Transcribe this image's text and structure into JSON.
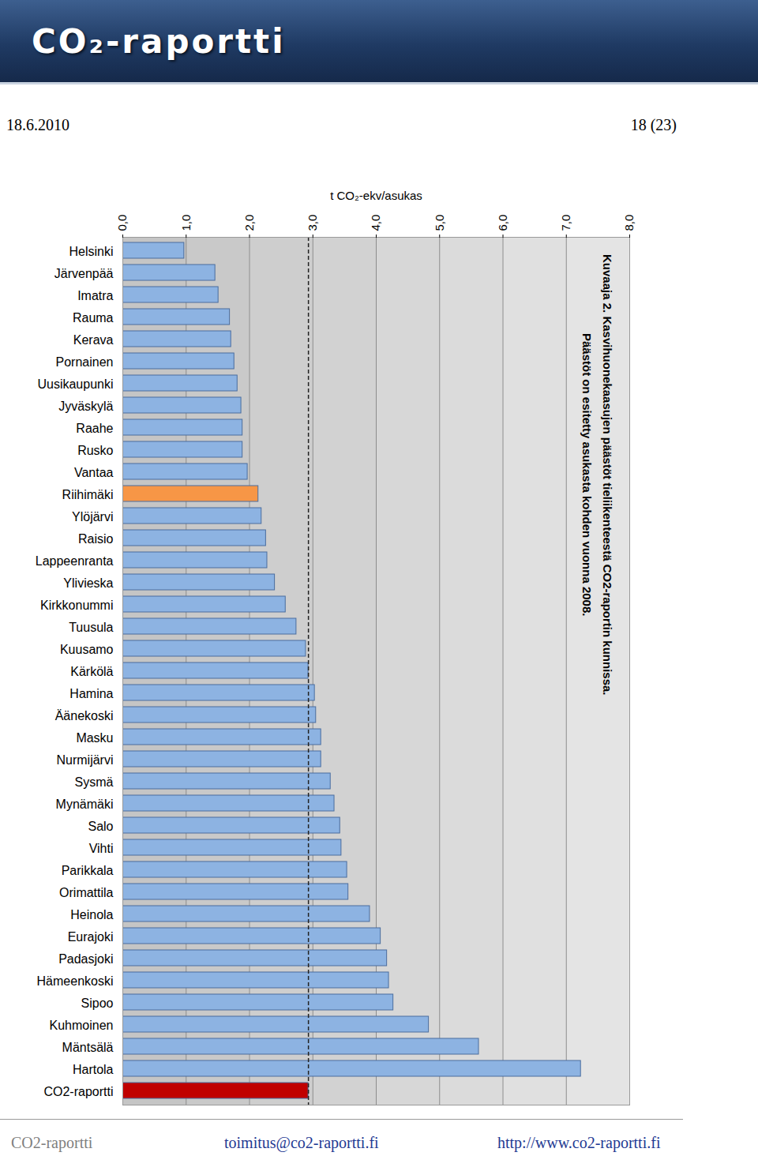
{
  "page": {
    "banner": "CO₂-raportti",
    "date": "18.6.2010",
    "page_number": "18 (23)",
    "footer": [
      "CO2-raportti",
      "toimitus@co2-raportti.fi",
      "http://www.co2-raportti.fi"
    ]
  },
  "chart_data": {
    "type": "bar",
    "orientation": "horizontal",
    "caption": [
      "Kuvaaja 2. Kasvihuonekaasujen päästöt tieliikenteestä CO2-raportin kunnissa.",
      "Päästöt on esitetty asukasta kohden vuonna 2008."
    ],
    "x_label": "t CO₂-ekv/asukas",
    "categories": [
      "Helsinki",
      "Järvenpää",
      "Imatra",
      "Rauma",
      "Kerava",
      "Pornainen",
      "Uusikaupunki",
      "Jyväskylä",
      "Raahe",
      "Rusko",
      "Vantaa",
      "Riihimäki",
      "Ylöjärvi",
      "Raisio",
      "Lappeenranta",
      "Ylivieska",
      "Kirkkonummi",
      "Tuusula",
      "Kuusamo",
      "Kärkölä",
      "Hamina",
      "Äänekoski",
      "Masku",
      "Nurmijärvi",
      "Sysmä",
      "Mynämäki",
      "Salo",
      "Vihti",
      "Parikkala",
      "Orimattila",
      "Heinola",
      "Eurajoki",
      "Padasjoki",
      "Hämeenkoski",
      "Sipoo",
      "Kuhmoinen",
      "Mäntsälä",
      "Hartola",
      "CO2-raportti"
    ],
    "values": [
      0.97,
      1.46,
      1.51,
      1.69,
      1.71,
      1.76,
      1.81,
      1.87,
      1.89,
      1.89,
      1.97,
      2.14,
      2.19,
      2.26,
      2.28,
      2.4,
      2.57,
      2.74,
      2.89,
      2.93,
      3.03,
      3.05,
      3.13,
      3.13,
      3.28,
      3.34,
      3.43,
      3.45,
      3.54,
      3.56,
      3.9,
      4.07,
      4.17,
      4.2,
      4.27,
      4.83,
      5.62,
      7.23,
      2.93
    ],
    "colors": [
      "#8db3e2",
      "#8db3e2",
      "#8db3e2",
      "#8db3e2",
      "#8db3e2",
      "#8db3e2",
      "#8db3e2",
      "#8db3e2",
      "#8db3e2",
      "#8db3e2",
      "#8db3e2",
      "#f79646",
      "#8db3e2",
      "#8db3e2",
      "#8db3e2",
      "#8db3e2",
      "#8db3e2",
      "#8db3e2",
      "#8db3e2",
      "#8db3e2",
      "#8db3e2",
      "#8db3e2",
      "#8db3e2",
      "#8db3e2",
      "#8db3e2",
      "#8db3e2",
      "#8db3e2",
      "#8db3e2",
      "#8db3e2",
      "#8db3e2",
      "#8db3e2",
      "#8db3e2",
      "#8db3e2",
      "#8db3e2",
      "#8db3e2",
      "#8db3e2",
      "#8db3e2",
      "#8db3e2",
      "#c00000"
    ],
    "average_line": 2.93,
    "xlim": [
      0,
      8
    ],
    "xticks": [
      {
        "value": 0,
        "label": "0,0"
      },
      {
        "value": 1,
        "label": "1,0"
      },
      {
        "value": 2,
        "label": "2,0"
      },
      {
        "value": 3,
        "label": "3,0"
      },
      {
        "value": 4,
        "label": "4,0"
      },
      {
        "value": 5,
        "label": "5,0"
      },
      {
        "value": 6,
        "label": "6,0"
      },
      {
        "value": 7,
        "label": "7,0"
      },
      {
        "value": 8,
        "label": "8,0"
      }
    ],
    "grid": true
  }
}
